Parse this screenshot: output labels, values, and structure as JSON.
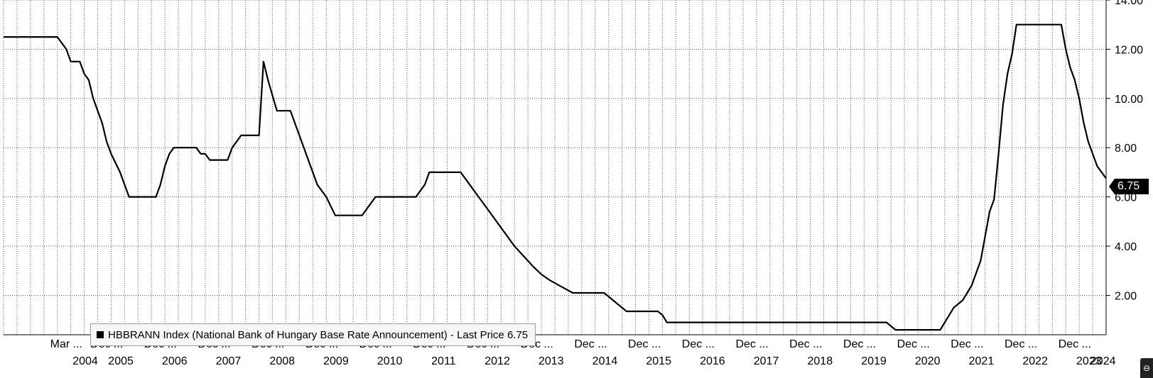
{
  "chart_data": {
    "type": "line",
    "title": "",
    "xlabel": "",
    "ylabel": "",
    "ylim": [
      0.4,
      14
    ],
    "xlim": [
      "2004-01",
      "2024-07"
    ],
    "y_axis_position": "right",
    "yticks": [
      2,
      4,
      6,
      8,
      10,
      12,
      14
    ],
    "ytick_labels": [
      "2.00",
      "4.00",
      "6.00",
      "8.00",
      "10.00",
      "12.00",
      "14.00"
    ],
    "grid": true,
    "legend_placement": "bottom-left",
    "x_tick_labels": [
      {
        "top": "Mar ...",
        "bottom": "2004",
        "date": "2005-03"
      },
      {
        "top": "Dec ...",
        "bottom": "2005",
        "date": "2005-12"
      },
      {
        "top": "Dec ...",
        "bottom": "2006",
        "date": "2006-12"
      },
      {
        "top": "Dec ...",
        "bottom": "2007",
        "date": "2007-12"
      },
      {
        "top": "Dec ...",
        "bottom": "2008",
        "date": "2008-12"
      },
      {
        "top": "Dec ...",
        "bottom": "2009",
        "date": "2009-12"
      },
      {
        "top": "Dec ...",
        "bottom": "2010",
        "date": "2010-12"
      },
      {
        "top": "Dec ...",
        "bottom": "2011",
        "date": "2011-12"
      },
      {
        "top": "Dec ...",
        "bottom": "2012",
        "date": "2012-12"
      },
      {
        "top": "Dec ...",
        "bottom": "2013",
        "date": "2013-12"
      },
      {
        "top": "Dec ...",
        "bottom": "2014",
        "date": "2014-12"
      },
      {
        "top": "Dec ...",
        "bottom": "2015",
        "date": "2015-12"
      },
      {
        "top": "Dec ...",
        "bottom": "2016",
        "date": "2016-12"
      },
      {
        "top": "Dec ...",
        "bottom": "2017",
        "date": "2017-12"
      },
      {
        "top": "Dec ...",
        "bottom": "2018",
        "date": "2018-12"
      },
      {
        "top": "Dec ...",
        "bottom": "2019",
        "date": "2019-12"
      },
      {
        "top": "Dec ...",
        "bottom": "2020",
        "date": "2020-12"
      },
      {
        "top": "Dec ...",
        "bottom": "2021",
        "date": "2021-12"
      },
      {
        "top": "Dec ...",
        "bottom": "2022",
        "date": "2022-12"
      },
      {
        "top": "Dec ...",
        "bottom": "2023",
        "date": "2023-12"
      },
      {
        "top": "",
        "bottom": "2024",
        "date": "2024-06"
      }
    ],
    "series": [
      {
        "name": "HBBRANN Index (National Bank of Hungary Base Rate Announcement) - Last Price 6.75",
        "color": "#000000",
        "points": [
          [
            "2004-01",
            12.5
          ],
          [
            "2005-01",
            12.5
          ],
          [
            "2005-02",
            12.25
          ],
          [
            "2005-03",
            12.0
          ],
          [
            "2005-04",
            11.5
          ],
          [
            "2005-06",
            11.5
          ],
          [
            "2005-07",
            11.0
          ],
          [
            "2005-08",
            10.75
          ],
          [
            "2005-09",
            10.0
          ],
          [
            "2005-10",
            9.5
          ],
          [
            "2005-11",
            9.0
          ],
          [
            "2005-12",
            8.25
          ],
          [
            "2006-01",
            7.75
          ],
          [
            "2006-03",
            7.0
          ],
          [
            "2006-04",
            6.5
          ],
          [
            "2006-05",
            6.0
          ],
          [
            "2006-11",
            6.0
          ],
          [
            "2006-12",
            6.5
          ],
          [
            "2007-01",
            7.25
          ],
          [
            "2007-02",
            7.75
          ],
          [
            "2007-03",
            8.0
          ],
          [
            "2007-08",
            8.0
          ],
          [
            "2007-09",
            7.75
          ],
          [
            "2007-10",
            7.75
          ],
          [
            "2007-11",
            7.5
          ],
          [
            "2008-03",
            7.5
          ],
          [
            "2008-04",
            8.0
          ],
          [
            "2008-05",
            8.25
          ],
          [
            "2008-06",
            8.5
          ],
          [
            "2008-10",
            8.5
          ],
          [
            "2008-11",
            11.5
          ],
          [
            "2008-12",
            10.75
          ],
          [
            "2009-02",
            9.5
          ],
          [
            "2009-05",
            9.5
          ],
          [
            "2009-07",
            8.5
          ],
          [
            "2009-09",
            7.5
          ],
          [
            "2009-11",
            6.5
          ],
          [
            "2010-01",
            6.0
          ],
          [
            "2010-03",
            5.25
          ],
          [
            "2010-09",
            5.25
          ],
          [
            "2010-10",
            5.5
          ],
          [
            "2010-12",
            6.0
          ],
          [
            "2011-09",
            6.0
          ],
          [
            "2011-11",
            6.5
          ],
          [
            "2011-12",
            7.0
          ],
          [
            "2012-07",
            7.0
          ],
          [
            "2012-08",
            6.75
          ],
          [
            "2012-09",
            6.5
          ],
          [
            "2012-11",
            6.0
          ],
          [
            "2013-01",
            5.5
          ],
          [
            "2013-03",
            5.0
          ],
          [
            "2013-05",
            4.5
          ],
          [
            "2013-07",
            4.0
          ],
          [
            "2013-09",
            3.6
          ],
          [
            "2013-11",
            3.2
          ],
          [
            "2014-01",
            2.85
          ],
          [
            "2014-03",
            2.6
          ],
          [
            "2014-06",
            2.3
          ],
          [
            "2014-08",
            2.1
          ],
          [
            "2015-03",
            2.1
          ],
          [
            "2015-05",
            1.8
          ],
          [
            "2015-07",
            1.5
          ],
          [
            "2015-08",
            1.35
          ],
          [
            "2016-03",
            1.35
          ],
          [
            "2016-04",
            1.2
          ],
          [
            "2016-05",
            0.9
          ],
          [
            "2020-06",
            0.9
          ],
          [
            "2020-07",
            0.75
          ],
          [
            "2020-08",
            0.6
          ],
          [
            "2021-06",
            0.6
          ],
          [
            "2021-07",
            0.9
          ],
          [
            "2021-08",
            1.2
          ],
          [
            "2021-09",
            1.5
          ],
          [
            "2021-10",
            1.65
          ],
          [
            "2021-11",
            1.8
          ],
          [
            "2021-12",
            2.1
          ],
          [
            "2022-01",
            2.4
          ],
          [
            "2022-02",
            2.9
          ],
          [
            "2022-03",
            3.4
          ],
          [
            "2022-04",
            4.4
          ],
          [
            "2022-05",
            5.4
          ],
          [
            "2022-06",
            5.9
          ],
          [
            "2022-07",
            7.75
          ],
          [
            "2022-08",
            9.75
          ],
          [
            "2022-09",
            11.0
          ],
          [
            "2022-10",
            11.8
          ],
          [
            "2022-11",
            13.0
          ],
          [
            "2023-09",
            13.0
          ],
          [
            "2023-10",
            12.0
          ],
          [
            "2023-11",
            11.25
          ],
          [
            "2023-12",
            10.75
          ],
          [
            "2024-01",
            10.0
          ],
          [
            "2024-02",
            9.0
          ],
          [
            "2024-03",
            8.25
          ],
          [
            "2024-04",
            7.75
          ],
          [
            "2024-05",
            7.25
          ],
          [
            "2024-06",
            7.0
          ],
          [
            "2024-07",
            6.75
          ]
        ]
      }
    ],
    "last_value_label": "6.75"
  },
  "legend": {
    "text": "HBBRANN Index (National Bank of Hungary Base Rate Announcement) - Last Price 6.75"
  },
  "last_tag": "6.75",
  "corner_icon": "dots-menu-icon"
}
